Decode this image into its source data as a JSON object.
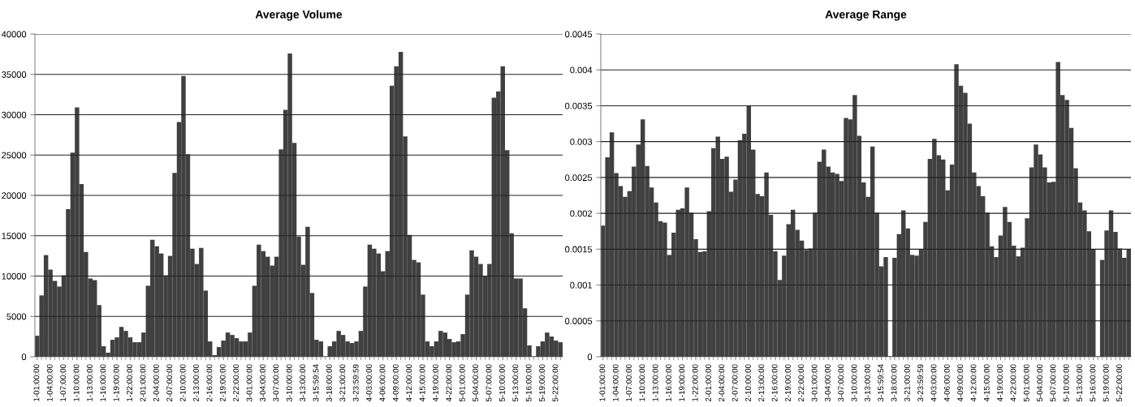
{
  "chart_data": [
    {
      "type": "bar",
      "title": "Average Volume",
      "categories": [
        "1-01:00:00",
        null,
        null,
        "1-04:00:00",
        null,
        null,
        "1-07:00:00",
        null,
        null,
        "1-10:00:00",
        null,
        null,
        "1-13:00:00",
        null,
        null,
        "1-16:00:00",
        null,
        null,
        "1-19:00:00",
        null,
        null,
        "1-22:00:00",
        null,
        null,
        "2-01:00:00",
        null,
        null,
        "2-04:00:00",
        null,
        null,
        "2-07:00:00",
        null,
        null,
        "2-10:00:00",
        null,
        null,
        "2-13:00:00",
        null,
        null,
        "2-16:00:00",
        null,
        null,
        "2-19:00:00",
        null,
        null,
        "2-22:00:00",
        null,
        null,
        "3-01:00:00",
        null,
        null,
        "3-04:00:00",
        null,
        null,
        "3-07:00:00",
        null,
        null,
        "3-10:00:00",
        null,
        null,
        "3-13:00:00",
        null,
        null,
        "3-15:59:54",
        null,
        null,
        "3-18:00:00",
        null,
        null,
        "3-21:00:00",
        null,
        null,
        "3-23:59:59",
        null,
        null,
        "4-03:00:00",
        null,
        null,
        "4-06:00:00",
        null,
        null,
        "4-09:00:00",
        null,
        null,
        "4-12:00:00",
        null,
        null,
        "4-15:00:00",
        null,
        null,
        "4-19:00:00",
        null,
        null,
        "4-22:00:00",
        null,
        null,
        "5-01:00:00",
        null,
        null,
        "5-04:00:00",
        null,
        null,
        "5-07:00:00",
        null,
        null,
        "5-10:00:00",
        null,
        null,
        "5-13:00:00",
        null,
        null,
        "5-16:00:00",
        null,
        null,
        "5-19:00:00",
        null,
        null,
        "5-22:00:00",
        null
      ],
      "values": [
        2600,
        7600,
        12600,
        10800,
        9400,
        8700,
        10100,
        18300,
        25300,
        30900,
        21400,
        13000,
        9700,
        9500,
        6400,
        1300,
        500,
        2100,
        2400,
        3700,
        3200,
        2400,
        1800,
        1800,
        3000,
        8800,
        14500,
        13700,
        12800,
        10100,
        12500,
        22800,
        29100,
        34800,
        25100,
        13400,
        11500,
        13500,
        8200,
        1900,
        200,
        1200,
        2000,
        3000,
        2700,
        2300,
        1900,
        1900,
        3000,
        8800,
        13900,
        13100,
        12400,
        11300,
        12400,
        25700,
        30600,
        37600,
        26500,
        14900,
        11400,
        16100,
        7900,
        2100,
        1900,
        null,
        1300,
        1900,
        3200,
        2700,
        1900,
        1700,
        1900,
        3200,
        8700,
        13900,
        13400,
        12800,
        10600,
        13100,
        33600,
        36000,
        37800,
        27300,
        15100,
        12000,
        11700,
        7700,
        1900,
        1300,
        1900,
        3200,
        3000,
        2200,
        1800,
        1900,
        2800,
        7700,
        13200,
        12400,
        11500,
        10000,
        11500,
        32100,
        32900,
        36000,
        25600,
        15300,
        9700,
        9700,
        6000,
        1400,
        null,
        1300,
        1900,
        3000,
        2500,
        2000,
        1800
      ],
      "color": "#404040",
      "ylim": [
        0,
        40000
      ],
      "yticks": [
        0,
        5000,
        10000,
        15000,
        20000,
        25000,
        30000,
        35000,
        40000
      ],
      "grid": "y"
    },
    {
      "type": "bar",
      "title": "Average Range",
      "categories": [
        "1-01:00:00",
        null,
        null,
        "1-04:00:00",
        null,
        null,
        "1-07:00:00",
        null,
        null,
        "1-10:00:00",
        null,
        null,
        "1-13:00:00",
        null,
        null,
        "1-16:00:00",
        null,
        null,
        "1-19:00:00",
        null,
        null,
        "1-22:00:00",
        null,
        null,
        "2-01:00:00",
        null,
        null,
        "2-04:00:00",
        null,
        null,
        "2-07:00:00",
        null,
        null,
        "2-10:00:00",
        null,
        null,
        "2-13:00:00",
        null,
        null,
        "2-16:00:00",
        null,
        null,
        "2-19:00:00",
        null,
        null,
        "2-22:00:00",
        null,
        null,
        "3-01:00:00",
        null,
        null,
        "3-04:00:00",
        null,
        null,
        "3-07:00:00",
        null,
        null,
        "3-10:00:00",
        null,
        null,
        "3-13:00:00",
        null,
        null,
        "3-15:59:54",
        null,
        null,
        "3-18:00:00",
        null,
        null,
        "3-21:00:00",
        null,
        null,
        "3-23:59:59",
        null,
        null,
        "4-03:00:00",
        null,
        null,
        "4-06:00:00",
        null,
        null,
        "4-09:00:00",
        null,
        null,
        "4-12:00:00",
        null,
        null,
        "4-15:00:00",
        null,
        null,
        "4-19:00:00",
        null,
        null,
        "4-22:00:00",
        null,
        null,
        "5-01:00:00",
        null,
        null,
        "5-04:00:00",
        null,
        null,
        "5-07:00:00",
        null,
        null,
        "5-10:00:00",
        null,
        null,
        "5-13:00:00",
        null,
        null,
        "5-16:00:00",
        null,
        null,
        "5-19:00:00",
        null,
        null,
        "5-22:00:00",
        null,
        null
      ],
      "values": [
        0.00183,
        0.00278,
        0.00313,
        0.00256,
        0.00238,
        0.00223,
        0.00231,
        0.00265,
        0.00296,
        0.00331,
        0.00266,
        0.00236,
        0.00215,
        0.00189,
        0.00187,
        0.00142,
        0.00173,
        0.00205,
        0.00207,
        0.00236,
        0.00201,
        0.00164,
        0.00146,
        0.00147,
        0.00203,
        0.00291,
        0.00307,
        0.00276,
        0.00279,
        0.0023,
        0.00247,
        0.00302,
        0.00311,
        0.0035,
        0.00289,
        0.00227,
        0.00224,
        0.00257,
        0.00198,
        0.00147,
        0.00107,
        0.00141,
        0.00185,
        0.00205,
        0.00177,
        0.00162,
        0.00149,
        0.00151,
        0.00201,
        0.00272,
        0.00289,
        0.00265,
        0.00257,
        0.00255,
        0.00245,
        0.00333,
        0.00331,
        0.00365,
        0.00308,
        0.00243,
        0.00223,
        0.00293,
        0.00201,
        0.00126,
        0.00139,
        null,
        0.00138,
        0.00171,
        0.00204,
        0.00179,
        0.00142,
        0.00141,
        0.0015,
        0.00188,
        0.00276,
        0.00304,
        0.00281,
        0.00275,
        0.00232,
        0.00268,
        0.00408,
        0.00378,
        0.00368,
        0.00325,
        0.00257,
        0.00238,
        0.00224,
        0.00201,
        0.00154,
        0.00139,
        0.00169,
        0.00209,
        0.00188,
        0.00155,
        0.0014,
        0.00152,
        0.00193,
        0.00264,
        0.00296,
        0.00282,
        0.00264,
        0.00243,
        0.00244,
        0.00411,
        0.00365,
        0.00358,
        0.00319,
        0.00263,
        0.00215,
        0.00204,
        0.00175,
        0.0015,
        null,
        0.00135,
        0.00176,
        0.00204,
        0.00174,
        0.00151,
        0.00138,
        0.0015
      ],
      "color": "#404040",
      "ylim": [
        0,
        0.0045
      ],
      "yticks": [
        0,
        0.0005,
        0.001,
        0.0015,
        0.002,
        0.0025,
        0.003,
        0.0035,
        0.004,
        0.0045
      ],
      "grid": "y"
    }
  ]
}
